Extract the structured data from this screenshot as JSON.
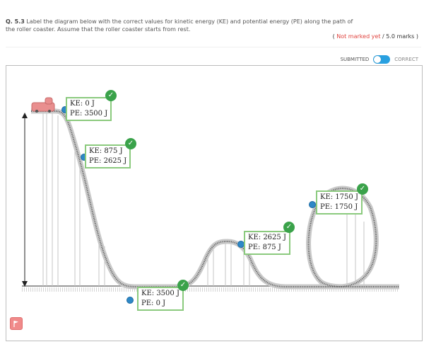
{
  "question": {
    "number": "Q. 5.3",
    "text": "Label the diagram below with the correct values for kinetic energy (KE) and potential energy (PE) along the path of the roller coaster. Assume that the roller coaster starts from rest."
  },
  "marks": {
    "not_marked": "Not marked yet",
    "value": "/ 5.0 marks"
  },
  "toggle": {
    "left_label": "SUBMITTED",
    "right_label": "CORRECT"
  },
  "labels": [
    {
      "ke": "KE: 0 J",
      "pe": "PE: 3500 J"
    },
    {
      "ke": "KE: 875 J",
      "pe": "PE: 2625 J"
    },
    {
      "ke": "KE: 3500 J",
      "pe": "PE: 0 J"
    },
    {
      "ke": "KE: 2625 J",
      "pe": "PE: 875 J"
    },
    {
      "ke": "KE: 1750 J",
      "pe": "PE: 1750 J"
    }
  ],
  "colors": {
    "label_border": "#8bca7e",
    "check": "#3aa24a",
    "handle": "#2d88c7",
    "toggle": "#29a0e0",
    "not_marked": "#e0423d"
  },
  "icons": {
    "check": "check-icon",
    "flag": "flag-icon",
    "handle": "drag-handle-icon"
  }
}
